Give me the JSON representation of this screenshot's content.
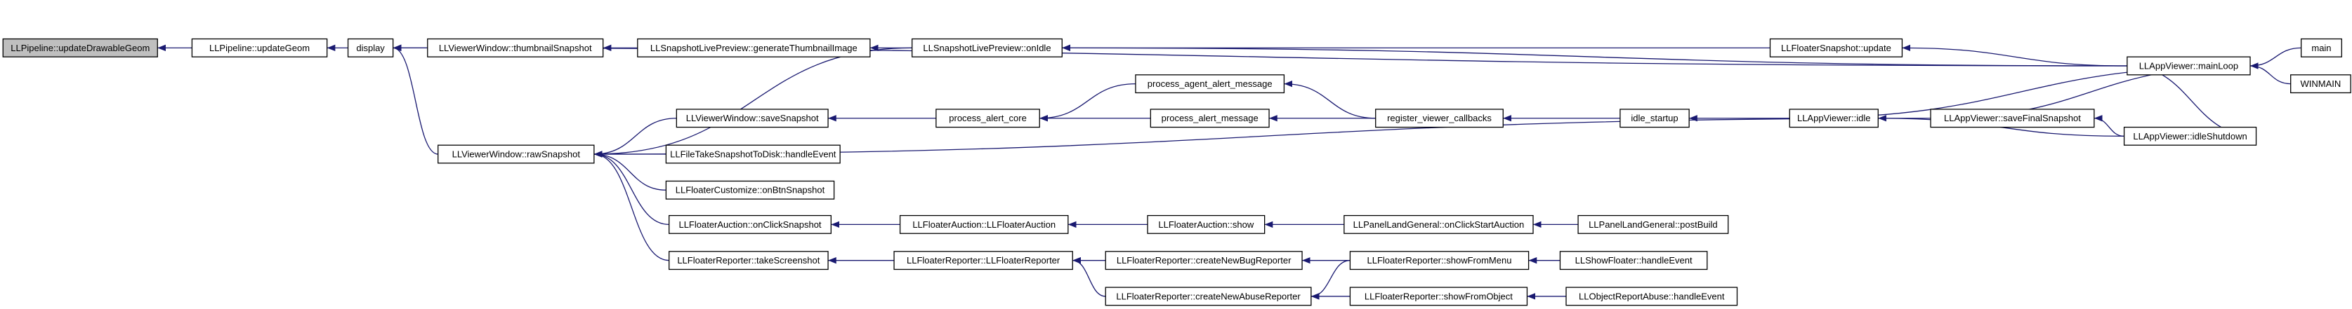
{
  "nodes": [
    {
      "label": "LLPipeline::updateDrawableGeom"
    },
    {
      "label": "LLPipeline::updateGeom"
    },
    {
      "label": "display"
    },
    {
      "label": "LLViewerWindow::thumbnailSnapshot"
    },
    {
      "label": "LLSnapshotLivePreview::generateThumbnailImage"
    },
    {
      "label": "LLSnapshotLivePreview::onIdle"
    },
    {
      "label": "LLFloaterSnapshot::update"
    },
    {
      "label": "LLAppViewer::mainLoop"
    },
    {
      "label": "main"
    },
    {
      "label": "WINMAIN"
    },
    {
      "label": "LLViewerWindow::rawSnapshot"
    },
    {
      "label": "LLViewerWindow::saveSnapshot"
    },
    {
      "label": "process_alert_core"
    },
    {
      "label": "process_agent_alert_message"
    },
    {
      "label": "process_alert_message"
    },
    {
      "label": "register_viewer_callbacks"
    },
    {
      "label": "idle_startup"
    },
    {
      "label": "LLAppViewer::idle"
    },
    {
      "label": "LLAppViewer::saveFinalSnapshot"
    },
    {
      "label": "LLAppViewer::idleShutdown"
    },
    {
      "label": "LLFileTakeSnapshotToDisk::handleEvent"
    },
    {
      "label": "LLFloaterCustomize::onBtnSnapshot"
    },
    {
      "label": "LLFloaterAuction::onClickSnapshot"
    },
    {
      "label": "LLFloaterAuction::LLFloaterAuction"
    },
    {
      "label": "LLFloaterAuction::show"
    },
    {
      "label": "LLPanelLandGeneral::onClickStartAuction"
    },
    {
      "label": "LLPanelLandGeneral::postBuild"
    },
    {
      "label": "LLFloaterReporter::takeScreenshot"
    },
    {
      "label": "LLFloaterReporter::LLFloaterReporter"
    },
    {
      "label": "LLFloaterReporter::createNewBugReporter"
    },
    {
      "label": "LLFloaterReporter::showFromMenu"
    },
    {
      "label": "LLShowFloater::handleEvent"
    },
    {
      "label": "LLFloaterReporter::createNewAbuseReporter"
    },
    {
      "label": "LLFloaterReporter::showFromObject"
    },
    {
      "label": "LLObjectReportAbuse::handleEvent"
    }
  ]
}
